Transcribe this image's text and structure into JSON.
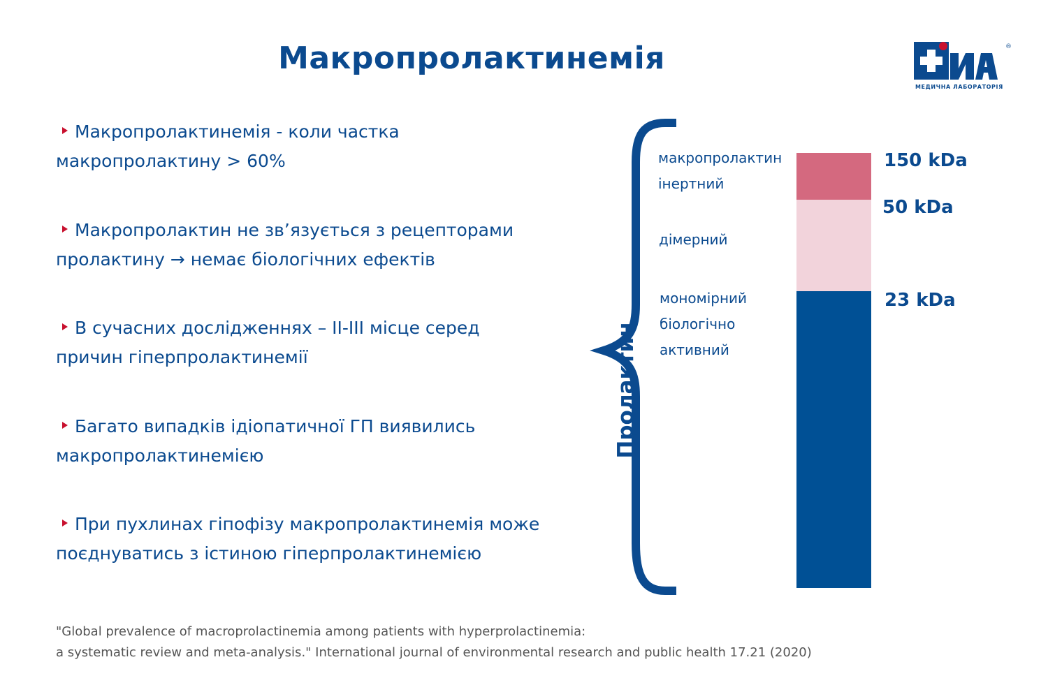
{
  "slide": {
    "title": "Макропролактинемія"
  },
  "logo": {
    "name": "Dila",
    "brand_text": "Діла",
    "registered": "®",
    "subtitle": "МЕДИЧНА ЛАБОРАТОРІЯ",
    "color": "#0b4a8f",
    "icon": "medical-cross-icon"
  },
  "bullets": [
    {
      "line1": "Макропролактинемія - коли частка",
      "line2": "макропролактину > 60%"
    },
    {
      "line1": "Макропролактин не зв’язується з рецепторами",
      "line2": "пролактину → немає біологічних ефектів"
    },
    {
      "line1": "В сучасних дослідженнях – II-III місце серед",
      "line2": "причин гіперпролактинемії"
    },
    {
      "line1": "Багато випадків ідіопатичної ГП виявились",
      "line2": "макропролактинемією"
    },
    {
      "line1": "При пухлинах гіпофізу макропролактинемія може",
      "line2": "поєднуватись з істиною гіперпролактинемією"
    }
  ],
  "diagram": {
    "group_label": "Пролактин",
    "forms": [
      {
        "line1": "макропролактин",
        "line2": "інертний",
        "weight": "150 kDa",
        "color": "#d4697f"
      },
      {
        "line1": "дімерний",
        "weight": "50 kDa",
        "color": "#f2d3db"
      },
      {
        "line1": "мономірний",
        "line2": "біологічно",
        "line3": "активний",
        "weight": "23 kDa",
        "color": "#005095"
      }
    ]
  },
  "reference": {
    "line1": "\"Global prevalence of macroprolactinemia among patients with hyperprolactinemia:",
    "line2": "a systematic review and meta-analysis.\" International journal of environmental research and public health 17.21 (2020)"
  },
  "colors": {
    "primary": "#0b4a8f",
    "accent": "#c8102e"
  }
}
